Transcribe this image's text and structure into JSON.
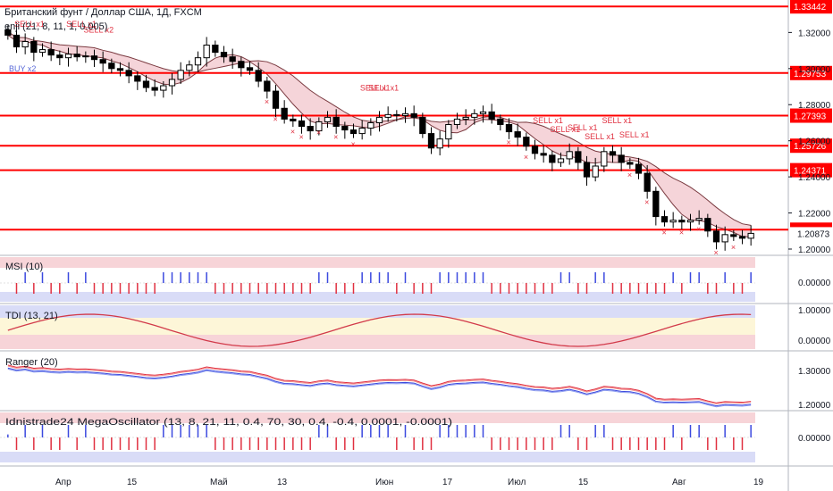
{
  "title": "Британский фунт / Доллар США, 1Д, FXCM",
  "main_indicator_label": "enji (21, 8, 11, 1, 0.005)",
  "colors": {
    "bull": "#ffffff",
    "bear": "#000000",
    "level": "#ff0000",
    "cloud_bear": "#f2c6cc",
    "cloud_bull": "#cfe9d2",
    "sell": "#e03040",
    "buy": "#3b49df",
    "axis_text": "#131722"
  },
  "price_axis": {
    "ticks": [
      "1.32000",
      "1.30000",
      "1.28000",
      "1.26000",
      "1.24000",
      "1.22000",
      "1.20000"
    ],
    "level_labels": [
      "1.33442",
      "1.29753",
      "1.27393",
      "1.25726",
      "1.24371",
      "1.21075"
    ],
    "last_price": "1.20873"
  },
  "time_axis": [
    "Апр",
    "15",
    "Май",
    "13",
    "Июн",
    "17",
    "Июл",
    "15",
    "Авг",
    "19"
  ],
  "signals": {
    "sell": [
      "SELL x1",
      "SELL x1",
      "SELL x2",
      "SELL x1",
      "SELL x1",
      "SELL x1",
      "SELL x1",
      "SELL x1",
      "SELL x1",
      "SELL x1",
      "SELL x1"
    ],
    "buy": [
      "BUY x2"
    ]
  },
  "panels": {
    "msi": {
      "label": "MSI (10)",
      "tick": "0.00000"
    },
    "tdi": {
      "label": "TDI (13, 21)",
      "ticks": [
        "1.00000",
        "0.00000"
      ]
    },
    "ranger": {
      "label": "Ranger (20)",
      "ticks": [
        "1.30000",
        "1.20000"
      ]
    },
    "mega": {
      "label": "Idnistrade24 MegaOscillator (13, 8, 21, 11, 0.4, 70, 30, 0.4, -0.4, 0.0001, -0.0001)",
      "tick": "0.00000"
    }
  },
  "chart_data": {
    "type": "candlestick",
    "ylim": [
      1.2,
      1.337
    ],
    "horizontal_levels": [
      1.33442,
      1.29753,
      1.27393,
      1.25726,
      1.24371,
      1.21075
    ],
    "close_series": [
      1.3185,
      1.312,
      1.315,
      1.309,
      1.3105,
      1.3075,
      1.306,
      1.308,
      1.3065,
      1.307,
      1.305,
      1.303,
      1.3,
      1.299,
      1.296,
      1.293,
      1.2895,
      1.288,
      1.2905,
      1.294,
      1.299,
      1.302,
      1.306,
      1.313,
      1.309,
      1.3065,
      1.304,
      1.3005,
      1.299,
      1.293,
      1.2875,
      1.278,
      1.272,
      1.271,
      1.268,
      1.2655,
      1.2705,
      1.273,
      1.268,
      1.266,
      1.264,
      1.267,
      1.27,
      1.273,
      1.2745,
      1.274,
      1.275,
      1.273,
      1.264,
      1.256,
      1.261,
      1.269,
      1.272,
      1.273,
      1.275,
      1.276,
      1.272,
      1.269,
      1.265,
      1.262,
      1.257,
      1.253,
      1.252,
      1.248,
      1.25,
      1.254,
      1.248,
      1.24,
      1.246,
      1.254,
      1.252,
      1.248,
      1.247,
      1.242,
      1.232,
      1.218,
      1.215,
      1.216,
      1.215,
      1.216,
      1.217,
      1.21,
      1.204,
      1.208,
      1.207,
      1.206,
      1.2087
    ]
  }
}
